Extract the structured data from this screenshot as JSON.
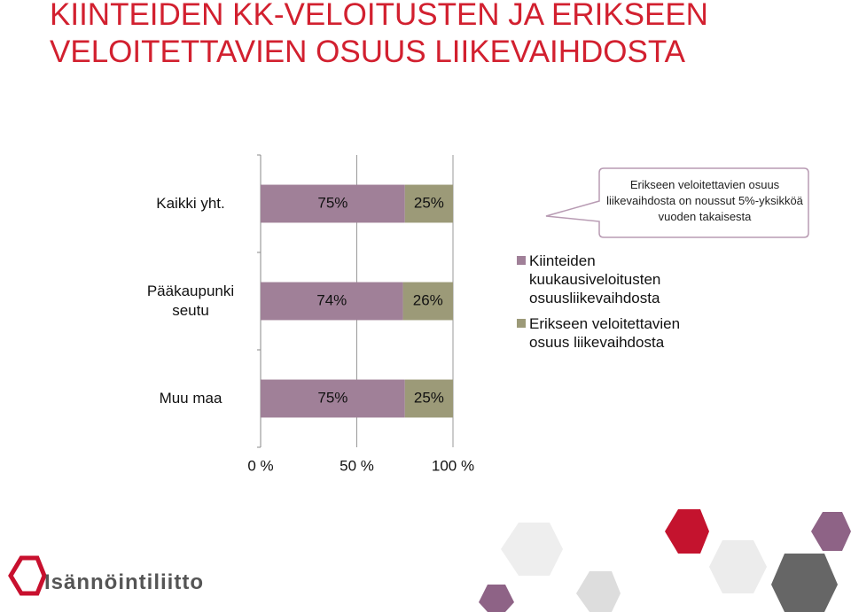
{
  "chart_data": {
    "type": "stacked-bar-horizontal",
    "title": "KIINTEIDEN KK-VELOITUSTEN JA ERIKSEEN VELOITETTAVIEN OSUUS LIIKEVAIHDOSTA",
    "categories": [
      "Kaikki yht.",
      "Pääkaupunki seutu",
      "Muu maa"
    ],
    "series": [
      {
        "name": "Kiinteiden kuukausiveloitusten osuusliikevaihdosta",
        "color": "#a08098",
        "values": [
          75,
          74,
          75
        ],
        "value_labels": [
          "75%",
          "74%",
          "75%"
        ]
      },
      {
        "name": "Erikseen veloitettavien osuus liikevaihdosta",
        "color": "#9c9a78",
        "values": [
          25,
          26,
          25
        ],
        "value_labels": [
          "25%",
          "26%",
          "25%"
        ]
      }
    ],
    "xlim": [
      0,
      100
    ],
    "xticks": [
      {
        "value": 0,
        "label": "0 %"
      },
      {
        "value": 50,
        "label": "50 %"
      },
      {
        "value": 100,
        "label": "100 %"
      }
    ],
    "grid": true,
    "annotation": "Erikseen veloitettavien osuus liikevaihdosta on noussut 5%-yksikköä vuoden takaisesta"
  },
  "logo": "Isännöintiliitto"
}
